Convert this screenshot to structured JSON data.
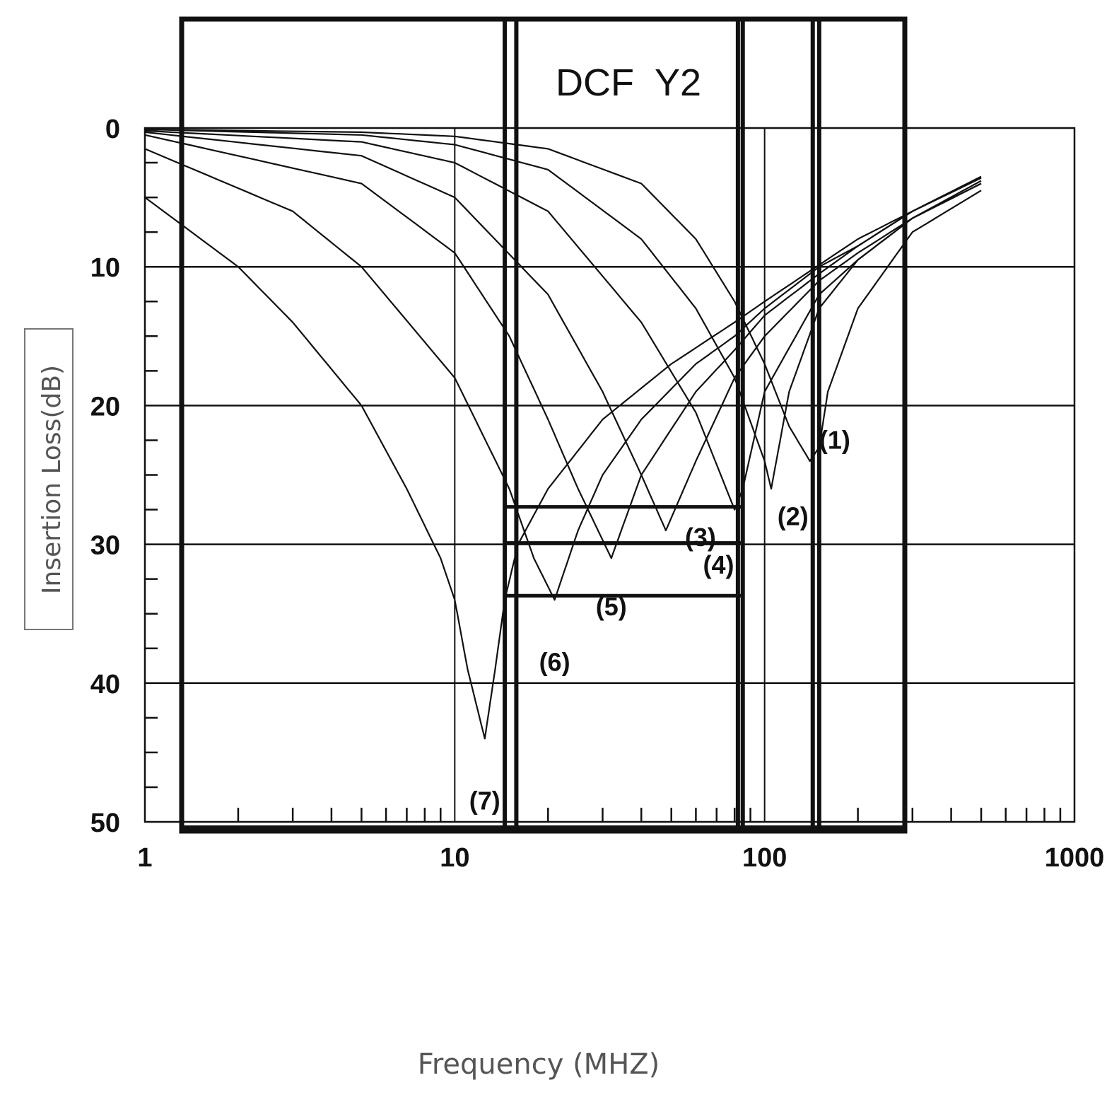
{
  "chart_data": {
    "type": "line",
    "title": "DCF  Y2",
    "xlabel": "Frequency (MHZ)",
    "ylabel": "Insertion Loss(dB)",
    "x_scale": "log",
    "xlim": [
      1,
      1000
    ],
    "ylim": [
      0,
      50
    ],
    "y_inverted": true,
    "grid": true,
    "x_ticks": [
      "1",
      "10",
      "100",
      "1000"
    ],
    "y_ticks": [
      "0",
      "10",
      "20",
      "30",
      "40",
      "50"
    ],
    "series": [
      {
        "name": "(1)",
        "x": [
          1,
          5,
          10,
          20,
          40,
          60,
          80,
          100,
          120,
          140,
          150,
          160,
          200,
          300,
          500
        ],
        "y": [
          0.1,
          0.3,
          0.6,
          1.5,
          4,
          8,
          12.5,
          17,
          21.5,
          24,
          23,
          19,
          13,
          7.5,
          4.5
        ]
      },
      {
        "name": "(2)",
        "x": [
          1,
          5,
          10,
          20,
          40,
          60,
          80,
          100,
          105,
          120,
          150,
          200,
          300,
          500
        ],
        "y": [
          0.1,
          0.5,
          1.2,
          3,
          8,
          13,
          18,
          24,
          26,
          19,
          13,
          9.5,
          6.5,
          4
        ]
      },
      {
        "name": "(3)",
        "x": [
          1,
          5,
          10,
          20,
          40,
          60,
          80,
          85,
          100,
          150,
          200,
          300,
          500
        ],
        "y": [
          0.2,
          1,
          2.5,
          6,
          14,
          20.5,
          27.5,
          26,
          19,
          12,
          9.5,
          6.5,
          4
        ]
      },
      {
        "name": "(4)",
        "x": [
          1,
          5,
          10,
          20,
          30,
          40,
          48,
          60,
          80,
          100,
          150,
          200,
          300,
          500
        ],
        "y": [
          0.3,
          2,
          5,
          12,
          19,
          25,
          29,
          24,
          18,
          15,
          11,
          9,
          6.5,
          3.8
        ]
      },
      {
        "name": "(5)",
        "x": [
          1,
          5,
          10,
          15,
          20,
          25,
          32,
          40,
          60,
          80,
          100,
          150,
          200,
          300,
          500
        ],
        "y": [
          0.5,
          4,
          9,
          15,
          21,
          26,
          31,
          25,
          19,
          16,
          13.5,
          10.5,
          8.5,
          6,
          3.5
        ]
      },
      {
        "name": "(6)",
        "x": [
          1,
          3,
          5,
          10,
          15,
          18,
          21,
          25,
          30,
          40,
          60,
          80,
          100,
          150,
          200,
          300,
          500
        ],
        "y": [
          1.5,
          6,
          10,
          18,
          26,
          31,
          34,
          29,
          25,
          21,
          17,
          15,
          13,
          10,
          8.5,
          6,
          3.6
        ]
      },
      {
        "name": "(7)",
        "x": [
          1,
          2,
          3,
          5,
          7,
          9,
          10,
          11,
          12.5,
          13.5,
          14.5,
          16,
          20,
          30,
          50,
          80,
          100,
          200,
          300,
          500
        ],
        "y": [
          5,
          10,
          14,
          20,
          26,
          31,
          34,
          39,
          44,
          39,
          34,
          30,
          26,
          21,
          17,
          14,
          12.5,
          8,
          6,
          3.5
        ]
      }
    ]
  }
}
